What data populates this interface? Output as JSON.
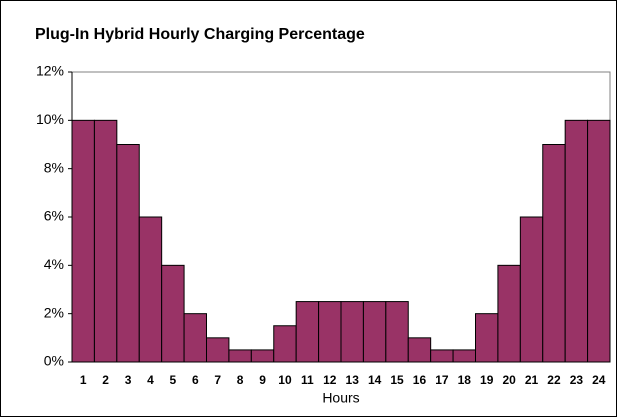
{
  "chart_data": {
    "type": "bar",
    "title": "Plug-In Hybrid Hourly Charging Percentage",
    "x_label": "Hours",
    "categories": [
      "1",
      "2",
      "3",
      "4",
      "5",
      "6",
      "7",
      "8",
      "9",
      "10",
      "11",
      "12",
      "13",
      "14",
      "15",
      "16",
      "17",
      "18",
      "19",
      "20",
      "21",
      "22",
      "23",
      "24"
    ],
    "values": [
      10,
      10,
      9,
      6,
      4,
      2,
      1,
      0.5,
      0.5,
      1.5,
      2.5,
      2.5,
      2.5,
      2.5,
      2.5,
      1,
      0.5,
      0.5,
      2,
      4,
      6,
      9,
      10,
      10
    ],
    "color": "#993366",
    "ylim": [
      0,
      12
    ],
    "yticks": [
      {
        "value": 0,
        "label": "0%"
      },
      {
        "value": 2,
        "label": "2%"
      },
      {
        "value": 4,
        "label": "4%"
      },
      {
        "value": 6,
        "label": "6%"
      },
      {
        "value": 8,
        "label": "8%"
      },
      {
        "value": 10,
        "label": "10%"
      },
      {
        "value": 12,
        "label": "12%"
      }
    ],
    "grid": false
  }
}
